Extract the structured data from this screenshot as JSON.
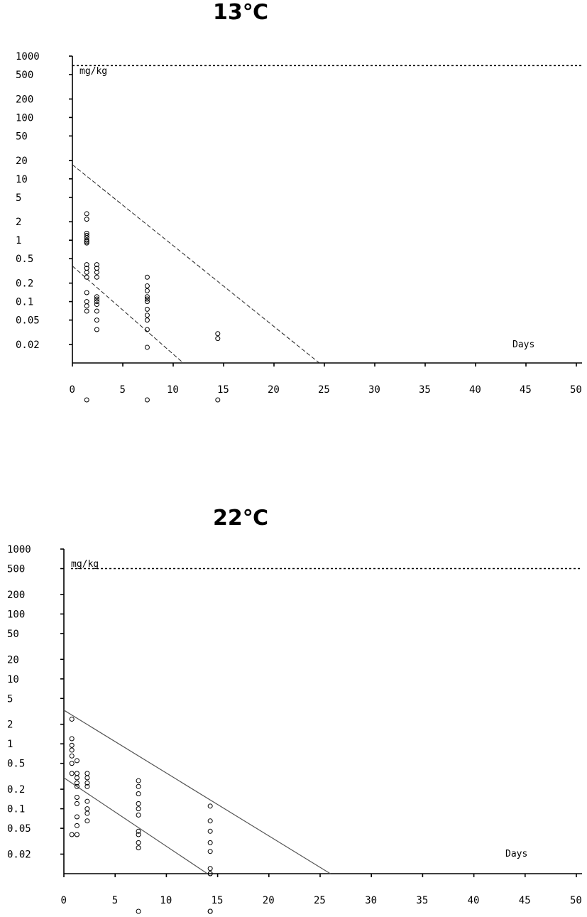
{
  "chart_data": [
    {
      "type": "scatter",
      "title": "13℃",
      "xlabel": "Days",
      "ylabel": "mg/kg",
      "y_scale": "log",
      "xlim": [
        0,
        50
      ],
      "ylim": [
        0.01,
        1000
      ],
      "x_ticks": [
        "0",
        "5",
        "10",
        "15",
        "20",
        "25",
        "30",
        "35",
        "40",
        "45",
        "50"
      ],
      "y_ticks": [
        "1000",
        "500",
        "200",
        "100",
        "50",
        "20",
        "10",
        "5",
        "2",
        "1",
        "0.5",
        "0.2",
        "0.1",
        "0.05",
        "0.02"
      ],
      "reference_line": {
        "y": 700
      },
      "regression_lines": [
        {
          "x": [
            0,
            24.5
          ],
          "y": [
            17,
            0.01
          ]
        },
        {
          "x": [
            0,
            11
          ],
          "y": [
            0.38,
            0.01
          ]
        }
      ],
      "points": {
        "x": [
          1,
          1,
          1,
          1,
          1,
          1,
          1,
          1,
          1,
          1,
          1,
          1,
          1,
          1,
          1,
          1,
          2,
          2,
          2,
          2,
          2,
          2,
          2,
          2,
          2,
          2,
          2,
          7,
          7,
          7,
          7,
          7,
          7,
          7,
          7,
          7,
          7,
          7,
          14,
          14
        ],
        "y": [
          2.7,
          2.2,
          1.3,
          1.2,
          1.1,
          1.0,
          0.95,
          0.9,
          0.4,
          0.35,
          0.3,
          0.25,
          0.14,
          0.1,
          0.085,
          0.07,
          0.4,
          0.35,
          0.3,
          0.25,
          0.12,
          0.11,
          0.1,
          0.09,
          0.07,
          0.05,
          0.035,
          0.25,
          0.18,
          0.15,
          0.12,
          0.11,
          0.1,
          0.075,
          0.06,
          0.05,
          0.035,
          0.018,
          0.03,
          0.025
        ]
      },
      "below_axis_points_x": [
        1,
        7,
        14
      ]
    },
    {
      "type": "scatter",
      "title": "22℃",
      "xlabel": "Days",
      "ylabel": "mg/kg",
      "y_scale": "log",
      "xlim": [
        0,
        50
      ],
      "ylim": [
        0.01,
        1000
      ],
      "x_ticks": [
        "0",
        "5",
        "10",
        "15",
        "20",
        "25",
        "30",
        "35",
        "40",
        "45",
        "50"
      ],
      "y_ticks": [
        "1000",
        "500",
        "200",
        "100",
        "50",
        "20",
        "10",
        "5",
        "2",
        "1",
        "0.5",
        "0.2",
        "0.1",
        "0.05",
        "0.02"
      ],
      "reference_line": {
        "y": 500
      },
      "regression_lines": [
        {
          "x": [
            0,
            26
          ],
          "y": [
            3.3,
            0.01
          ]
        },
        {
          "x": [
            0,
            14
          ],
          "y": [
            0.3,
            0.01
          ]
        }
      ],
      "points": {
        "x": [
          0.5,
          0.5,
          0.5,
          0.5,
          0.5,
          0.5,
          0.5,
          0.5,
          1,
          1,
          1,
          1,
          1,
          1,
          1,
          1,
          1,
          1,
          2,
          2,
          2,
          2,
          2,
          2,
          2,
          2,
          7,
          7,
          7,
          7,
          7,
          7,
          7,
          7,
          7,
          7,
          14,
          14,
          14,
          14,
          14,
          14,
          14,
          14
        ],
        "y": [
          2.4,
          1.2,
          0.95,
          0.8,
          0.65,
          0.5,
          0.35,
          0.04,
          0.55,
          0.35,
          0.3,
          0.25,
          0.22,
          0.15,
          0.12,
          0.075,
          0.055,
          0.04,
          0.35,
          0.3,
          0.25,
          0.22,
          0.13,
          0.1,
          0.085,
          0.065,
          0.27,
          0.22,
          0.17,
          0.12,
          0.1,
          0.08,
          0.045,
          0.04,
          0.03,
          0.025,
          0.11,
          0.065,
          0.045,
          0.03,
          0.022,
          0.012,
          0.01,
          0.01
        ],
        "note": ""
      },
      "below_axis_points_x": [
        7,
        14,
        14
      ]
    }
  ]
}
